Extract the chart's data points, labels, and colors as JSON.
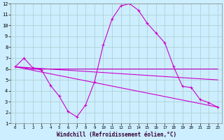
{
  "xlabel": "Windchill (Refroidissement éolien,°C)",
  "background_color": "#cceeff",
  "grid_color": "#aacccc",
  "line_color": "#cc00cc",
  "xlim": [
    -0.5,
    23.5
  ],
  "ylim": [
    1,
    12
  ],
  "xticks": [
    0,
    1,
    2,
    3,
    4,
    5,
    6,
    7,
    8,
    9,
    10,
    11,
    12,
    13,
    14,
    15,
    16,
    17,
    18,
    19,
    20,
    21,
    22,
    23
  ],
  "yticks": [
    1,
    2,
    3,
    4,
    5,
    6,
    7,
    8,
    9,
    10,
    11,
    12
  ],
  "series": [
    {
      "x": [
        0,
        1,
        2,
        3,
        4,
        5,
        6,
        7,
        8,
        9,
        10,
        11,
        12,
        13,
        14,
        15,
        16,
        17,
        18,
        19,
        20,
        21,
        22,
        23
      ],
      "y": [
        6.2,
        7.0,
        6.1,
        5.9,
        4.5,
        3.5,
        2.1,
        1.6,
        2.7,
        4.8,
        8.2,
        10.6,
        11.8,
        12.0,
        11.4,
        10.2,
        9.3,
        8.4,
        6.2,
        4.4,
        4.3,
        3.2,
        2.9,
        2.5
      ],
      "marker": true
    },
    {
      "x": [
        0,
        2,
        19,
        23
      ],
      "y": [
        6.2,
        6.0,
        6.0,
        6.0
      ],
      "marker": false
    },
    {
      "x": [
        0,
        23
      ],
      "y": [
        6.2,
        2.5
      ],
      "marker": false
    },
    {
      "x": [
        0,
        19,
        23
      ],
      "y": [
        6.2,
        5.2,
        5.0
      ],
      "marker": false
    }
  ]
}
